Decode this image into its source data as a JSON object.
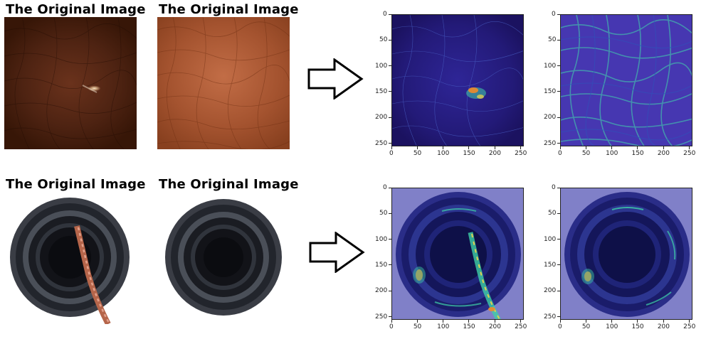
{
  "row1": {
    "panel_left_title": "The Original Image",
    "panel_right_title": "The Original Image"
  },
  "row2": {
    "panel_left_title": "The Original Image",
    "panel_right_title": "The Original Image"
  },
  "arrow_icon": "right-arrow-icon",
  "heatmap_axis": {
    "x_ticks": [
      "0",
      "50",
      "100",
      "150",
      "200",
      "250"
    ],
    "y_ticks": [
      "0",
      "50",
      "100",
      "150",
      "200",
      "250"
    ],
    "range": [
      0,
      256
    ]
  },
  "colors": {
    "heatmap_low": "#2b1f8f",
    "heatmap_mid": "#3fd0a8",
    "heatmap_high": "#f08a2a",
    "heatmap_background_bottle": "#8080c8"
  }
}
